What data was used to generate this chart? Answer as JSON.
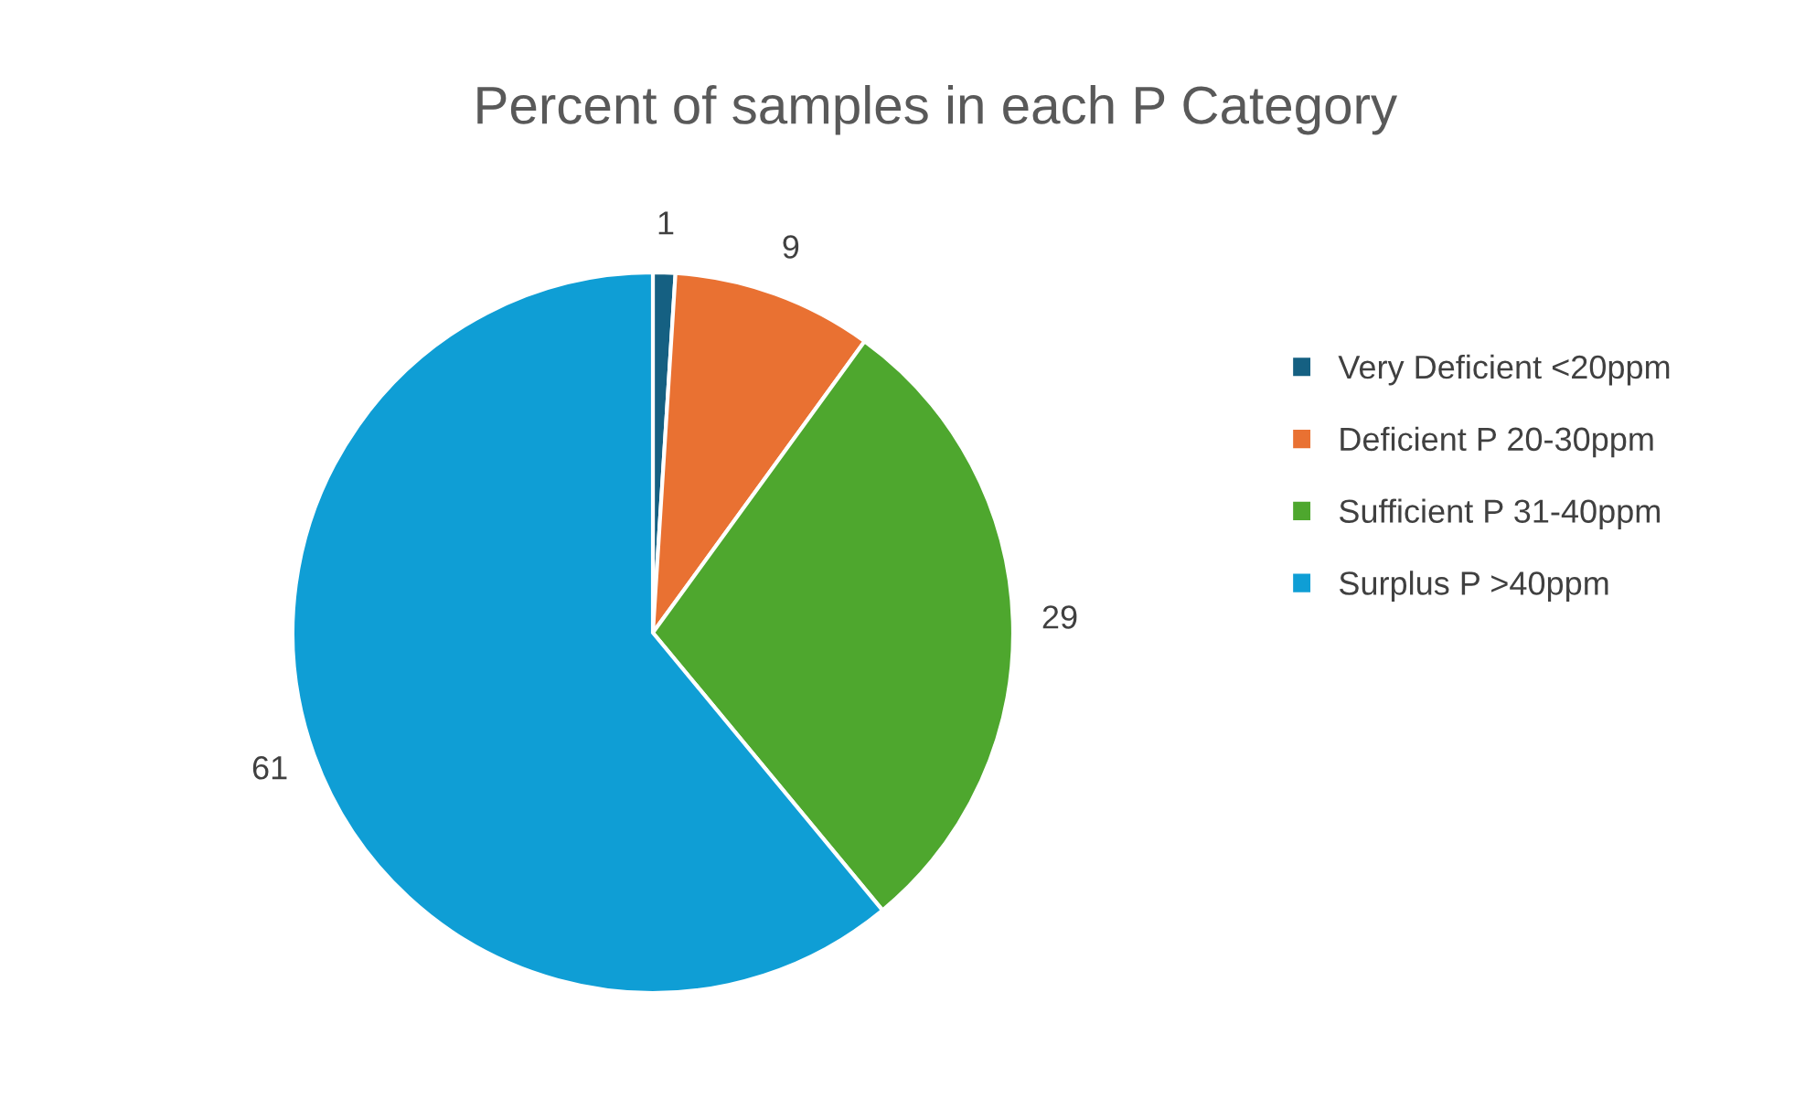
{
  "chart_data": {
    "type": "pie",
    "title": "Percent of samples in each P Category",
    "categories": [
      "Very Deficient <20ppm",
      "Deficient P 20-30ppm",
      "Sufficient P 31-40ppm",
      "Surplus P >40ppm"
    ],
    "values": [
      1,
      9,
      29,
      61
    ],
    "colors": [
      "#156082",
      "#e97132",
      "#4ea72e",
      "#0f9ed5"
    ],
    "data_labels": true,
    "legend": "right"
  }
}
